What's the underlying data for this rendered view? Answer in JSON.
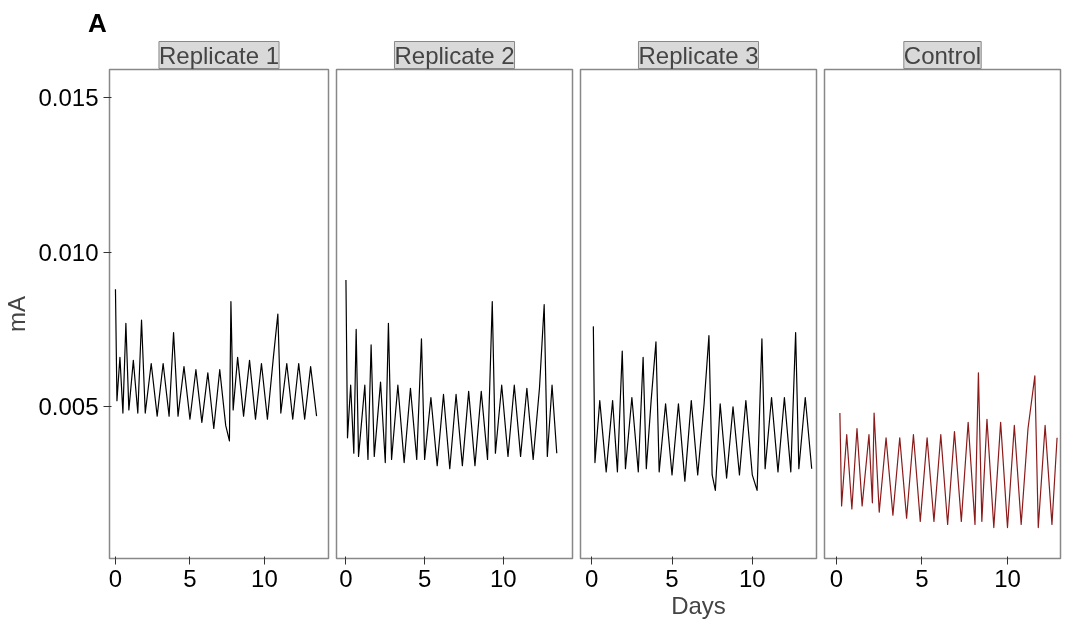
{
  "chart_data": [
    {
      "type": "line",
      "title": "Replicate 1",
      "ylabel": "mA",
      "annotations": [
        "A"
      ],
      "xlim": [
        -0.4,
        14.3
      ],
      "xticks": [
        0,
        5,
        10
      ],
      "ylim": [
        0.0001,
        0.0159
      ],
      "yticks": [
        0.005,
        {
          "value": 0.01,
          "label": "0.010"
        },
        0.015
      ],
      "grid": false,
      "series": [
        {
          "color": "#000000",
          "x": [
            0,
            0.1,
            0.3,
            0.5,
            0.7,
            0.9,
            1.2,
            1.5,
            1.75,
            2.0,
            2.4,
            2.8,
            3.2,
            3.6,
            3.9,
            4.2,
            4.6,
            5.0,
            5.4,
            5.8,
            6.2,
            6.6,
            7.0,
            7.4,
            7.65,
            7.75,
            7.9,
            8.2,
            8.6,
            9.0,
            9.4,
            9.8,
            10.2,
            10.6,
            10.9,
            11.1,
            11.5,
            11.9,
            12.3,
            12.7,
            13.1,
            13.5
          ],
          "values": [
            0.0088,
            0.0052,
            0.0066,
            0.0048,
            0.0077,
            0.0049,
            0.0065,
            0.0048,
            0.0078,
            0.0048,
            0.0064,
            0.0047,
            0.0064,
            0.0047,
            0.0074,
            0.0047,
            0.0063,
            0.0046,
            0.0062,
            0.0045,
            0.0061,
            0.0043,
            0.0062,
            0.0044,
            0.0039,
            0.0084,
            0.0049,
            0.0066,
            0.0047,
            0.0065,
            0.0046,
            0.0064,
            0.0046,
            0.0066,
            0.008,
            0.0048,
            0.0064,
            0.0046,
            0.0064,
            0.0046,
            0.0063,
            0.0047
          ]
        }
      ]
    },
    {
      "type": "line",
      "title": "Replicate 2",
      "xlim": [
        -0.6,
        14.4
      ],
      "xticks": [
        0,
        5,
        10
      ],
      "ylim": [
        0.0001,
        0.0159
      ],
      "tick_labels": "x",
      "grid": false,
      "series": [
        {
          "color": "#000000",
          "x": [
            0,
            0.1,
            0.3,
            0.5,
            0.65,
            0.8,
            1.2,
            1.4,
            1.6,
            1.8,
            2.2,
            2.5,
            2.7,
            2.9,
            3.3,
            3.7,
            4.1,
            4.5,
            4.8,
            5.0,
            5.4,
            5.8,
            6.2,
            6.6,
            7.0,
            7.4,
            7.8,
            8.2,
            8.6,
            9.0,
            9.3,
            9.5,
            9.9,
            10.3,
            10.7,
            11.1,
            11.5,
            11.9,
            12.3,
            12.6,
            12.8,
            13.1,
            13.4
          ],
          "values": [
            0.0091,
            0.004,
            0.0057,
            0.0035,
            0.0075,
            0.0034,
            0.0057,
            0.0033,
            0.007,
            0.0034,
            0.0058,
            0.0032,
            0.0077,
            0.0033,
            0.0057,
            0.0032,
            0.0056,
            0.0033,
            0.0072,
            0.0033,
            0.0053,
            0.0031,
            0.0054,
            0.003,
            0.0054,
            0.0031,
            0.0055,
            0.0031,
            0.0055,
            0.0033,
            0.0084,
            0.0035,
            0.0057,
            0.0034,
            0.0057,
            0.0034,
            0.0056,
            0.0033,
            0.0056,
            0.0083,
            0.0034,
            0.0057,
            0.0035
          ]
        }
      ]
    },
    {
      "type": "line",
      "title": "Replicate 3",
      "xlabel": "Days",
      "xlim": [
        -0.7,
        14.0
      ],
      "xticks": [
        0,
        5,
        10
      ],
      "ylim": [
        0.0001,
        0.0159
      ],
      "tick_labels": "x",
      "grid": false,
      "series": [
        {
          "color": "#000000",
          "x": [
            0.1,
            0.2,
            0.5,
            0.9,
            1.3,
            1.6,
            1.9,
            2.1,
            2.5,
            2.9,
            3.2,
            3.4,
            3.7,
            4.0,
            4.2,
            4.6,
            5.0,
            5.4,
            5.8,
            6.2,
            6.6,
            7.0,
            7.3,
            7.5,
            7.7,
            8.0,
            8.4,
            8.8,
            9.2,
            9.6,
            10.0,
            10.3,
            10.6,
            10.8,
            11.2,
            11.6,
            12.0,
            12.4,
            12.7,
            12.9,
            13.3,
            13.7
          ],
          "values": [
            0.0076,
            0.0032,
            0.0052,
            0.0029,
            0.0052,
            0.0029,
            0.0068,
            0.003,
            0.0053,
            0.0029,
            0.0066,
            0.003,
            0.0052,
            0.0071,
            0.0029,
            0.0051,
            0.0028,
            0.0051,
            0.0026,
            0.0052,
            0.0028,
            0.0051,
            0.0073,
            0.0028,
            0.0023,
            0.0051,
            0.0027,
            0.005,
            0.0028,
            0.0052,
            0.0028,
            0.0023,
            0.0072,
            0.003,
            0.0053,
            0.0029,
            0.0053,
            0.0029,
            0.0074,
            0.003,
            0.0053,
            0.003
          ]
        }
      ]
    },
    {
      "type": "line",
      "title": "Control",
      "xlim": [
        -0.7,
        13.1
      ],
      "xticks": [
        0,
        5,
        10
      ],
      "ylim": [
        0.0001,
        0.0159
      ],
      "tick_labels": "x",
      "grid": false,
      "series": [
        {
          "color": "#8b1a1a",
          "x": [
            0.2,
            0.3,
            0.6,
            0.9,
            1.2,
            1.5,
            1.9,
            2.1,
            2.2,
            2.5,
            2.9,
            3.3,
            3.7,
            4.1,
            4.5,
            4.9,
            5.3,
            5.7,
            6.1,
            6.5,
            6.9,
            7.3,
            7.7,
            8.1,
            8.3,
            8.5,
            8.8,
            9.2,
            9.6,
            10.0,
            10.4,
            10.8,
            11.2,
            11.6,
            11.8,
            12.2,
            12.6,
            12.9
          ],
          "values": [
            0.0048,
            0.0018,
            0.0041,
            0.0017,
            0.0043,
            0.0018,
            0.0041,
            0.0019,
            0.0048,
            0.0016,
            0.004,
            0.0015,
            0.004,
            0.0014,
            0.0041,
            0.0013,
            0.004,
            0.0013,
            0.0041,
            0.0012,
            0.0042,
            0.0013,
            0.0045,
            0.0012,
            0.0061,
            0.0013,
            0.0046,
            0.0011,
            0.0045,
            0.0011,
            0.0044,
            0.0012,
            0.0043,
            0.006,
            0.0011,
            0.0044,
            0.0012,
            0.004
          ]
        }
      ]
    }
  ]
}
